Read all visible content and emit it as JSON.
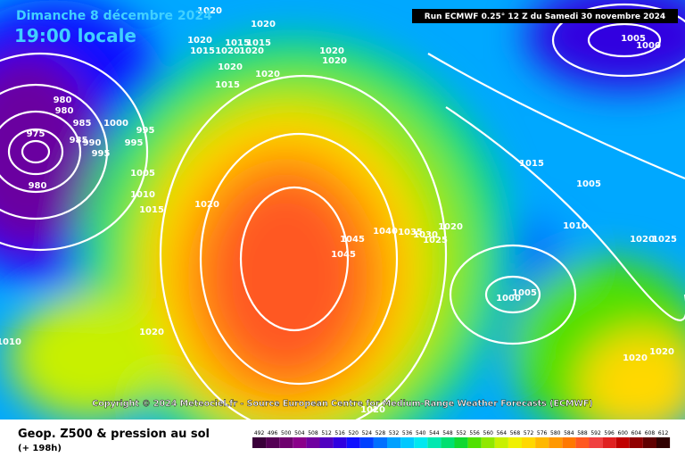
{
  "header": {
    "date": "Dimanche 8 décembre 2024",
    "time": "19:00 locale",
    "run": "Run ECMWF 0.25° 12 Z du Samedi 30 novembre 2024"
  },
  "copyright": "Copyright © 2024 Meteociel.fr - Source European Centre for Medium-Range Weather Forecasts (ECMWF)",
  "footer": {
    "title": "Geop. Z500 & pression au sol",
    "lead": "(+ 198h)"
  },
  "isobars": [
    1020,
    1020,
    1020,
    1015,
    1015,
    1020,
    1020,
    1015,
    1020,
    1020,
    1015,
    1020,
    1020,
    980,
    980,
    985,
    1000,
    995,
    985,
    990,
    995,
    995,
    975,
    1005,
    1010,
    1015,
    1020,
    980,
    1045,
    1045,
    1040,
    1035,
    1030,
    1025,
    1020,
    1015,
    1005,
    1010,
    1020,
    1025,
    1000,
    1005,
    1020,
    1010,
    1020,
    1020,
    1005,
    1000,
    1020
  ],
  "scale": [
    {
      "value": 492,
      "color": "#3a003a"
    },
    {
      "value": 496,
      "color": "#550055"
    },
    {
      "value": 500,
      "color": "#6e006e"
    },
    {
      "value": 504,
      "color": "#8a008a"
    },
    {
      "value": 508,
      "color": "#7000a0"
    },
    {
      "value": 512,
      "color": "#5000c0"
    },
    {
      "value": 516,
      "color": "#3000e0"
    },
    {
      "value": 520,
      "color": "#1010ff"
    },
    {
      "value": 524,
      "color": "#0040ff"
    },
    {
      "value": 528,
      "color": "#0070ff"
    },
    {
      "value": 532,
      "color": "#00a0ff"
    },
    {
      "value": 536,
      "color": "#00c8ff"
    },
    {
      "value": 540,
      "color": "#00e8f0"
    },
    {
      "value": 544,
      "color": "#00e8b0"
    },
    {
      "value": 548,
      "color": "#00e070"
    },
    {
      "value": 552,
      "color": "#10d830"
    },
    {
      "value": 556,
      "color": "#50e000"
    },
    {
      "value": 560,
      "color": "#90e800"
    },
    {
      "value": 564,
      "color": "#c8f000"
    },
    {
      "value": 568,
      "color": "#f0f000"
    },
    {
      "value": 572,
      "color": "#ffd800"
    },
    {
      "value": 576,
      "color": "#ffb800"
    },
    {
      "value": 580,
      "color": "#ff9800"
    },
    {
      "value": 584,
      "color": "#ff7800"
    },
    {
      "value": 588,
      "color": "#ff5820"
    },
    {
      "value": 592,
      "color": "#f04040"
    },
    {
      "value": 596,
      "color": "#e02020"
    },
    {
      "value": 600,
      "color": "#c00000"
    },
    {
      "value": 604,
      "color": "#900000"
    },
    {
      "value": 608,
      "color": "#600000"
    },
    {
      "value": 612,
      "color": "#300000"
    }
  ]
}
